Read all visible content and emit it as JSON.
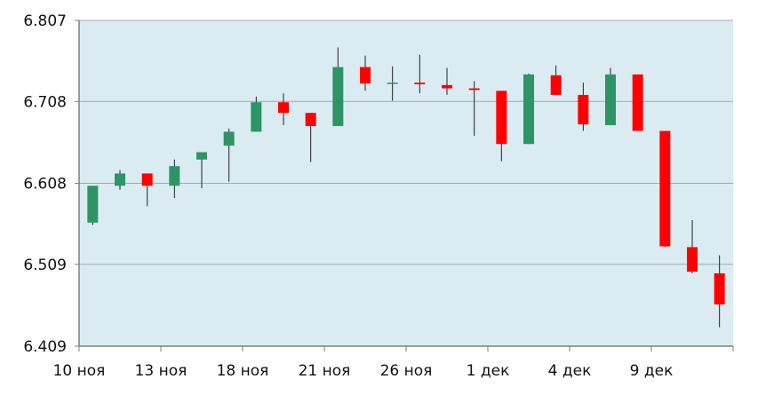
{
  "chart_data": {
    "type": "candlestick",
    "title": "",
    "xlabel": "",
    "ylabel": "",
    "ylim": [
      6.409,
      6.807
    ],
    "y_ticks": [
      "6.807",
      "6.708",
      "6.608",
      "6.509",
      "6.409"
    ],
    "x_tick_labels": [
      "10 ноя",
      "13 ноя",
      "18 ноя",
      "21 ноя",
      "26 ноя",
      "1 дек",
      "4 дек",
      "9 дек"
    ],
    "grid": "horizontal",
    "colors": {
      "background": "#daecf2",
      "up": "#2e9466",
      "down": "#ff0000",
      "gridline": "#a0a8ad",
      "axis": "#7f7f7f"
    },
    "candles": [
      {
        "open": 6.56,
        "high": 6.605,
        "low": 6.557,
        "close": 6.605
      },
      {
        "open": 6.605,
        "high": 6.624,
        "low": 6.6,
        "close": 6.62
      },
      {
        "open": 6.62,
        "high": 6.62,
        "low": 6.58,
        "close": 6.605
      },
      {
        "open": 6.605,
        "high": 6.637,
        "low": 6.59,
        "close": 6.629
      },
      {
        "open": 6.637,
        "high": 6.646,
        "low": 6.602,
        "close": 6.646
      },
      {
        "open": 6.654,
        "high": 6.675,
        "low": 6.61,
        "close": 6.671
      },
      {
        "open": 6.671,
        "high": 6.714,
        "low": 6.671,
        "close": 6.707
      },
      {
        "open": 6.707,
        "high": 6.718,
        "low": 6.679,
        "close": 6.694
      },
      {
        "open": 6.694,
        "high": 6.694,
        "low": 6.634,
        "close": 6.678
      },
      {
        "open": 6.678,
        "high": 6.774,
        "low": 6.678,
        "close": 6.75
      },
      {
        "open": 6.75,
        "high": 6.764,
        "low": 6.721,
        "close": 6.73
      },
      {
        "open": 6.73,
        "high": 6.751,
        "low": 6.709,
        "close": 6.731
      },
      {
        "open": 6.731,
        "high": 6.765,
        "low": 6.718,
        "close": 6.729
      },
      {
        "open": 6.728,
        "high": 6.749,
        "low": 6.716,
        "close": 6.724
      },
      {
        "open": 6.724,
        "high": 6.733,
        "low": 6.666,
        "close": 6.722
      },
      {
        "open": 6.721,
        "high": 6.721,
        "low": 6.635,
        "close": 6.656
      },
      {
        "open": 6.656,
        "high": 6.742,
        "low": 6.656,
        "close": 6.741
      },
      {
        "open": 6.74,
        "high": 6.752,
        "low": 6.716,
        "close": 6.716
      },
      {
        "open": 6.716,
        "high": 6.731,
        "low": 6.672,
        "close": 6.68
      },
      {
        "open": 6.679,
        "high": 6.749,
        "low": 6.679,
        "close": 6.741
      },
      {
        "open": 6.741,
        "high": 6.741,
        "low": 6.672,
        "close": 6.672
      },
      {
        "open": 6.672,
        "high": 6.672,
        "low": 6.53,
        "close": 6.531
      },
      {
        "open": 6.53,
        "high": 6.563,
        "low": 6.498,
        "close": 6.5
      },
      {
        "open": 6.498,
        "high": 6.52,
        "low": 6.432,
        "close": 6.46
      }
    ]
  }
}
